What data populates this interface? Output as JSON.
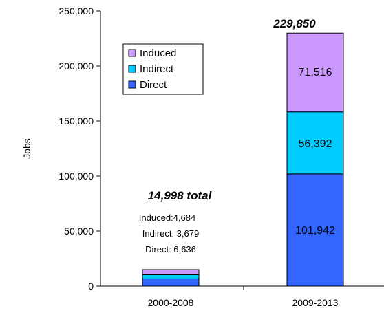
{
  "chart_data": {
    "type": "bar",
    "stacked": true,
    "categories": [
      "2000-2008",
      "2009-2013"
    ],
    "series": [
      {
        "name": "Direct",
        "values": [
          6636,
          101942
        ],
        "color": "#3366ff"
      },
      {
        "name": "Indirect",
        "values": [
          3679,
          56392
        ],
        "color": "#00ccff"
      },
      {
        "name": "Induced",
        "values": [
          4684,
          71516
        ],
        "color": "#cc99ff"
      }
    ],
    "ylabel": "Jobs",
    "ylim": [
      0,
      250000
    ],
    "yticks": [
      "0",
      "50,000",
      "100,000",
      "150,000",
      "200,000",
      "250,000"
    ],
    "ytick_values": [
      0,
      50000,
      100000,
      150000,
      200000,
      250000
    ],
    "legend": {
      "placement": "top-left",
      "entries": [
        "Induced",
        "Indirect",
        "Direct"
      ]
    },
    "annotations": {
      "bar2_total": "229,850",
      "bar2_direct": "101,942",
      "bar2_indirect": "56,392",
      "bar2_induced": "71,516",
      "bar1_total": "14,998 total",
      "bar1_induced": "Induced:4,684",
      "bar1_indirect": "Indirect: 3,679",
      "bar1_direct": "Direct: 6,636"
    },
    "grid": false
  }
}
